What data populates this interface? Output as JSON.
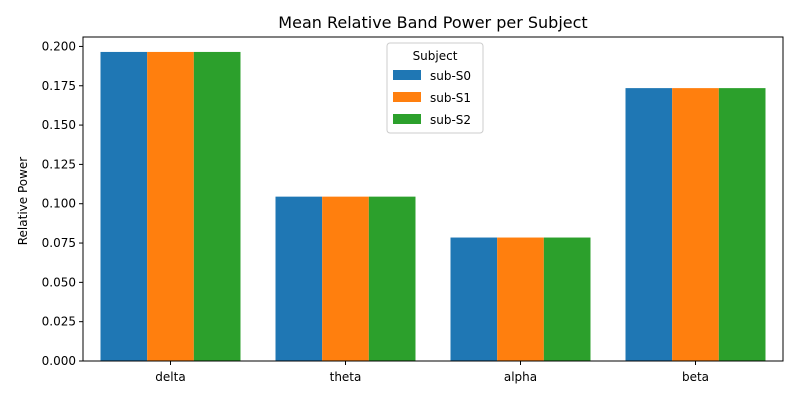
{
  "chart_data": {
    "type": "bar",
    "title": "Mean Relative Band Power per Subject",
    "xlabel": "",
    "ylabel": "Relative Power",
    "categories": [
      "delta",
      "theta",
      "alpha",
      "beta"
    ],
    "series": [
      {
        "name": "sub-S0",
        "color": "#1f77b4",
        "values": [
          0.1965,
          0.1045,
          0.0785,
          0.1735
        ]
      },
      {
        "name": "sub-S1",
        "color": "#ff7f0e",
        "values": [
          0.1965,
          0.1045,
          0.0785,
          0.1735
        ]
      },
      {
        "name": "sub-S2",
        "color": "#2ca02c",
        "values": [
          0.1965,
          0.1045,
          0.0785,
          0.1735
        ]
      }
    ],
    "ylim": [
      0,
      0.206
    ],
    "yticks": [
      0,
      0.025,
      0.05,
      0.075,
      0.1,
      0.125,
      0.15,
      0.175,
      0.2
    ],
    "ytick_labels": [
      "0.000",
      "0.025",
      "0.050",
      "0.075",
      "0.100",
      "0.125",
      "0.150",
      "0.175",
      "0.200"
    ],
    "grid": false,
    "legend": {
      "title": "Subject",
      "placement": "top-center"
    }
  }
}
